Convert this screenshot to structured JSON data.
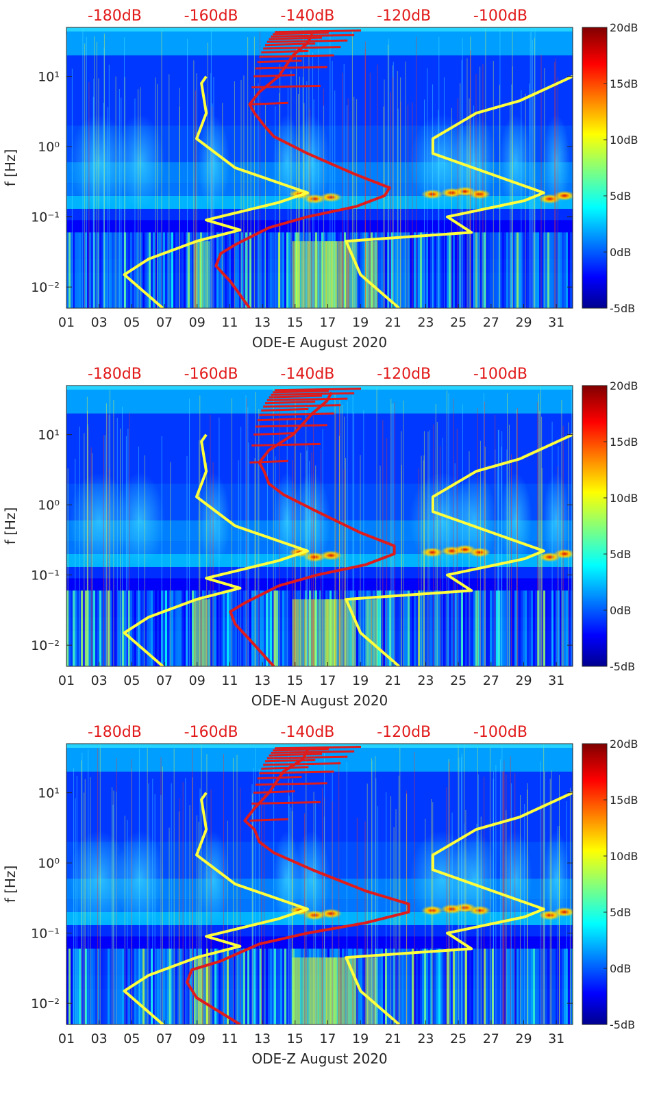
{
  "chart_data": [
    {
      "type": "heatmap",
      "title": "",
      "xlabel": "ODE-E August 2020",
      "ylabel": "f [Hz]",
      "x_ticks": [
        "01",
        "03",
        "05",
        "07",
        "09",
        "11",
        "13",
        "15",
        "17",
        "19",
        "21",
        "23",
        "25",
        "27",
        "29",
        "31"
      ],
      "xlim": [
        1,
        32
      ],
      "y_ticks": [
        "10⁻²",
        "10⁻¹",
        "10⁰",
        "10¹"
      ],
      "ylim_hz": [
        0.005,
        50
      ],
      "top_axis_labels": [
        "-180dB",
        "-160dB",
        "-140dB",
        "-120dB",
        "-100dB"
      ],
      "colorbar": {
        "range_db": [
          -5,
          20
        ],
        "labels": [
          "20dB",
          "15dB",
          "10dB",
          "5dB",
          "0dB",
          "-5dB"
        ]
      },
      "series": [
        {
          "name": "yellow-noise-model",
          "color": "#ffff3c",
          "points": [
            [
              -170,
              0.005
            ],
            [
              -178,
              0.015
            ],
            [
              -173,
              0.025
            ],
            [
              -163,
              0.045
            ],
            [
              -154,
              0.065
            ],
            [
              -161,
              0.09
            ],
            [
              -146,
              0.16
            ],
            [
              -140,
              0.22
            ],
            [
              -155,
              0.5
            ],
            [
              -163,
              1.3
            ],
            [
              -161,
              3
            ],
            [
              -162,
              8
            ],
            [
              -161,
              10
            ]
          ]
        },
        {
          "name": "yellow-high-noise-model",
          "color": "#ffff3c",
          "points": [
            [
              -121,
              0.005
            ],
            [
              -129,
              0.015
            ],
            [
              -132,
              0.045
            ],
            [
              -106,
              0.06
            ],
            [
              -111,
              0.1
            ],
            [
              -95,
              0.17
            ],
            [
              -91,
              0.22
            ],
            [
              -114,
              0.8
            ],
            [
              -114,
              1.3
            ],
            [
              -105,
              3
            ],
            [
              -96,
              4.5
            ],
            [
              -85,
              10
            ]
          ]
        },
        {
          "name": "red-station-noise",
          "color": "#e01b1b",
          "points": [
            [
              -152,
              0.005
            ],
            [
              -156,
              0.012
            ],
            [
              -159,
              0.02
            ],
            [
              -158,
              0.03
            ],
            [
              -155,
              0.04
            ],
            [
              -148,
              0.07
            ],
            [
              -140,
              0.1
            ],
            [
              -130,
              0.14
            ],
            [
              -124,
              0.2
            ],
            [
              -123,
              0.26
            ],
            [
              -130,
              0.4
            ],
            [
              -140,
              0.8
            ],
            [
              -147,
              1.4
            ],
            [
              -149,
              2
            ],
            [
              -151,
              3
            ],
            [
              -152,
              4
            ],
            [
              -150,
              6
            ],
            [
              -146,
              10
            ],
            [
              -143,
              20
            ],
            [
              -140,
              30
            ],
            [
              -139,
              40
            ]
          ]
        }
      ]
    },
    {
      "type": "heatmap",
      "title": "",
      "xlabel": "ODE-N August 2020",
      "ylabel": "f [Hz]",
      "x_ticks": [
        "01",
        "03",
        "05",
        "07",
        "09",
        "11",
        "13",
        "15",
        "17",
        "19",
        "21",
        "23",
        "25",
        "27",
        "29",
        "31"
      ],
      "xlim": [
        1,
        32
      ],
      "y_ticks": [
        "10⁻²",
        "10⁻¹",
        "10⁰",
        "10¹"
      ],
      "ylim_hz": [
        0.005,
        50
      ],
      "top_axis_labels": [
        "-180dB",
        "-160dB",
        "-140dB",
        "-120dB",
        "-100dB"
      ],
      "colorbar": {
        "range_db": [
          -5,
          20
        ],
        "labels": [
          "20dB",
          "15dB",
          "10dB",
          "5dB",
          "0dB",
          "-5dB"
        ]
      },
      "series": [
        {
          "name": "yellow-noise-model",
          "color": "#ffff3c",
          "points": [
            [
              -170,
              0.005
            ],
            [
              -178,
              0.015
            ],
            [
              -173,
              0.025
            ],
            [
              -163,
              0.045
            ],
            [
              -154,
              0.065
            ],
            [
              -161,
              0.09
            ],
            [
              -146,
              0.16
            ],
            [
              -140,
              0.22
            ],
            [
              -155,
              0.5
            ],
            [
              -163,
              1.3
            ],
            [
              -161,
              3
            ],
            [
              -162,
              8
            ],
            [
              -161,
              10
            ]
          ]
        },
        {
          "name": "yellow-high-noise-model",
          "color": "#ffff3c",
          "points": [
            [
              -121,
              0.005
            ],
            [
              -129,
              0.015
            ],
            [
              -132,
              0.045
            ],
            [
              -106,
              0.06
            ],
            [
              -111,
              0.1
            ],
            [
              -95,
              0.17
            ],
            [
              -91,
              0.22
            ],
            [
              -114,
              0.8
            ],
            [
              -114,
              1.3
            ],
            [
              -105,
              3
            ],
            [
              -96,
              4.5
            ],
            [
              -85,
              10
            ]
          ]
        },
        {
          "name": "red-station-noise",
          "color": "#e01b1b",
          "points": [
            [
              -147,
              0.005
            ],
            [
              -152,
              0.012
            ],
            [
              -155,
              0.02
            ],
            [
              -156,
              0.03
            ],
            [
              -153,
              0.04
            ],
            [
              -146,
              0.07
            ],
            [
              -138,
              0.1
            ],
            [
              -128,
              0.14
            ],
            [
              -122,
              0.2
            ],
            [
              -122,
              0.26
            ],
            [
              -129,
              0.4
            ],
            [
              -138,
              0.8
            ],
            [
              -145,
              1.4
            ],
            [
              -148,
              2
            ],
            [
              -149,
              3
            ],
            [
              -150,
              4
            ],
            [
              -148,
              6
            ],
            [
              -143,
              10
            ],
            [
              -139,
              20
            ],
            [
              -136,
              30
            ],
            [
              -135,
              40
            ]
          ]
        }
      ]
    },
    {
      "type": "heatmap",
      "title": "",
      "xlabel": "ODE-Z August 2020",
      "ylabel": "f [Hz]",
      "x_ticks": [
        "01",
        "03",
        "05",
        "07",
        "09",
        "11",
        "13",
        "15",
        "17",
        "19",
        "21",
        "23",
        "25",
        "27",
        "29",
        "31"
      ],
      "xlim": [
        1,
        32
      ],
      "y_ticks": [
        "10⁻²",
        "10⁻¹",
        "10⁰",
        "10¹"
      ],
      "ylim_hz": [
        0.005,
        50
      ],
      "top_axis_labels": [
        "-180dB",
        "-160dB",
        "-140dB",
        "-120dB",
        "-100dB"
      ],
      "colorbar": {
        "range_db": [
          -5,
          20
        ],
        "labels": [
          "20dB",
          "15dB",
          "10dB",
          "5dB",
          "0dB",
          "-5dB"
        ]
      },
      "series": [
        {
          "name": "yellow-noise-model",
          "color": "#ffff3c",
          "points": [
            [
              -170,
              0.005
            ],
            [
              -178,
              0.015
            ],
            [
              -173,
              0.025
            ],
            [
              -163,
              0.045
            ],
            [
              -154,
              0.065
            ],
            [
              -161,
              0.09
            ],
            [
              -146,
              0.16
            ],
            [
              -140,
              0.22
            ],
            [
              -155,
              0.5
            ],
            [
              -163,
              1.3
            ],
            [
              -161,
              3
            ],
            [
              -162,
              8
            ],
            [
              -161,
              10
            ]
          ]
        },
        {
          "name": "yellow-high-noise-model",
          "color": "#ffff3c",
          "points": [
            [
              -121,
              0.005
            ],
            [
              -129,
              0.015
            ],
            [
              -132,
              0.045
            ],
            [
              -106,
              0.06
            ],
            [
              -111,
              0.1
            ],
            [
              -95,
              0.17
            ],
            [
              -91,
              0.22
            ],
            [
              -114,
              0.8
            ],
            [
              -114,
              1.3
            ],
            [
              -105,
              3
            ],
            [
              -96,
              4.5
            ],
            [
              -85,
              10
            ]
          ]
        },
        {
          "name": "red-station-noise",
          "color": "#e01b1b",
          "points": [
            [
              -154,
              0.005
            ],
            [
              -163,
              0.012
            ],
            [
              -165,
              0.02
            ],
            [
              -164,
              0.03
            ],
            [
              -158,
              0.04
            ],
            [
              -150,
              0.07
            ],
            [
              -140,
              0.1
            ],
            [
              -128,
              0.14
            ],
            [
              -119,
              0.2
            ],
            [
              -119,
              0.26
            ],
            [
              -128,
              0.4
            ],
            [
              -139,
              0.8
            ],
            [
              -147,
              1.4
            ],
            [
              -150,
              2
            ],
            [
              -151,
              3
            ],
            [
              -153,
              4
            ],
            [
              -151,
              6
            ],
            [
              -148,
              10
            ],
            [
              -145,
              20
            ],
            [
              -141,
              30
            ],
            [
              -140,
              40
            ]
          ]
        }
      ]
    }
  ]
}
